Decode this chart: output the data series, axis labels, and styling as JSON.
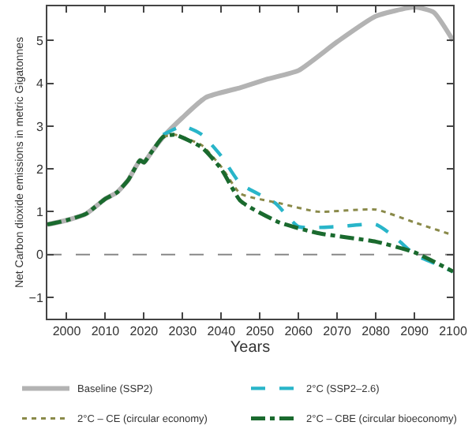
{
  "chart_data": {
    "type": "line",
    "xlabel": "Years",
    "ylabel": "Net Carbon dioxide emissions in metric Gigatonnes",
    "xlim": [
      1995,
      2100
    ],
    "xticks": [
      2000,
      2010,
      2020,
      2030,
      2040,
      2050,
      2060,
      2070,
      2080,
      2090,
      2100
    ],
    "ylim": [
      -1.5,
      5.8
    ],
    "yticks": [
      -1,
      0,
      1,
      2,
      3,
      4,
      5
    ],
    "grid": false,
    "legend": "bottom",
    "marker": "none",
    "ref_lines": [
      {
        "axis": "y",
        "value": 0,
        "color": "#888888",
        "line_style": "dashed"
      }
    ],
    "series": [
      {
        "name": "Baseline (SSP2)",
        "color": "#b3b3b3",
        "line_style": "solid",
        "x": [
          1995,
          2000,
          2005,
          2010,
          2013,
          2016,
          2019,
          2020,
          2022,
          2025,
          2030,
          2036,
          2045,
          2052,
          2060,
          2070,
          2080,
          2090,
          2095,
          2100
        ],
        "values": [
          0.7,
          0.8,
          0.95,
          1.3,
          1.45,
          1.75,
          2.2,
          2.15,
          2.4,
          2.75,
          3.2,
          3.67,
          3.9,
          4.1,
          4.3,
          4.97,
          5.57,
          5.78,
          5.66,
          5.0
        ]
      },
      {
        "name": "2°C (SSP2–2.6)",
        "color": "#29b5c9",
        "line_style": "dashed",
        "x": [
          2025,
          2030,
          2035,
          2040,
          2045,
          2054,
          2060,
          2070,
          2080,
          2085,
          2090,
          2095,
          2100
        ],
        "values": [
          2.8,
          3.0,
          2.8,
          2.3,
          1.65,
          1.2,
          0.65,
          0.65,
          0.7,
          0.4,
          0.0,
          -0.2,
          -0.4
        ]
      },
      {
        "name": "2°C – CE (circular economy)",
        "color": "#8a8a4a",
        "line_style": "dotted",
        "x": [
          2025,
          2028,
          2035,
          2040,
          2045,
          2055,
          2065,
          2080,
          2090,
          2100
        ],
        "values": [
          2.75,
          2.8,
          2.55,
          2.05,
          1.42,
          1.2,
          1.0,
          1.05,
          0.75,
          0.45
        ]
      },
      {
        "name": "2°C – CBE (circular bioeconomy)",
        "color": "#1a6a2e",
        "line_style": "dashdot",
        "x": [
          1995,
          2000,
          2005,
          2010,
          2013,
          2016,
          2019,
          2020,
          2022,
          2025,
          2028,
          2035,
          2040,
          2045,
          2055,
          2065,
          2080,
          2090,
          2100
        ],
        "values": [
          0.7,
          0.8,
          0.95,
          1.3,
          1.45,
          1.75,
          2.2,
          2.15,
          2.4,
          2.75,
          2.8,
          2.5,
          2.0,
          1.25,
          0.75,
          0.5,
          0.3,
          0.05,
          -0.4
        ]
      }
    ]
  }
}
